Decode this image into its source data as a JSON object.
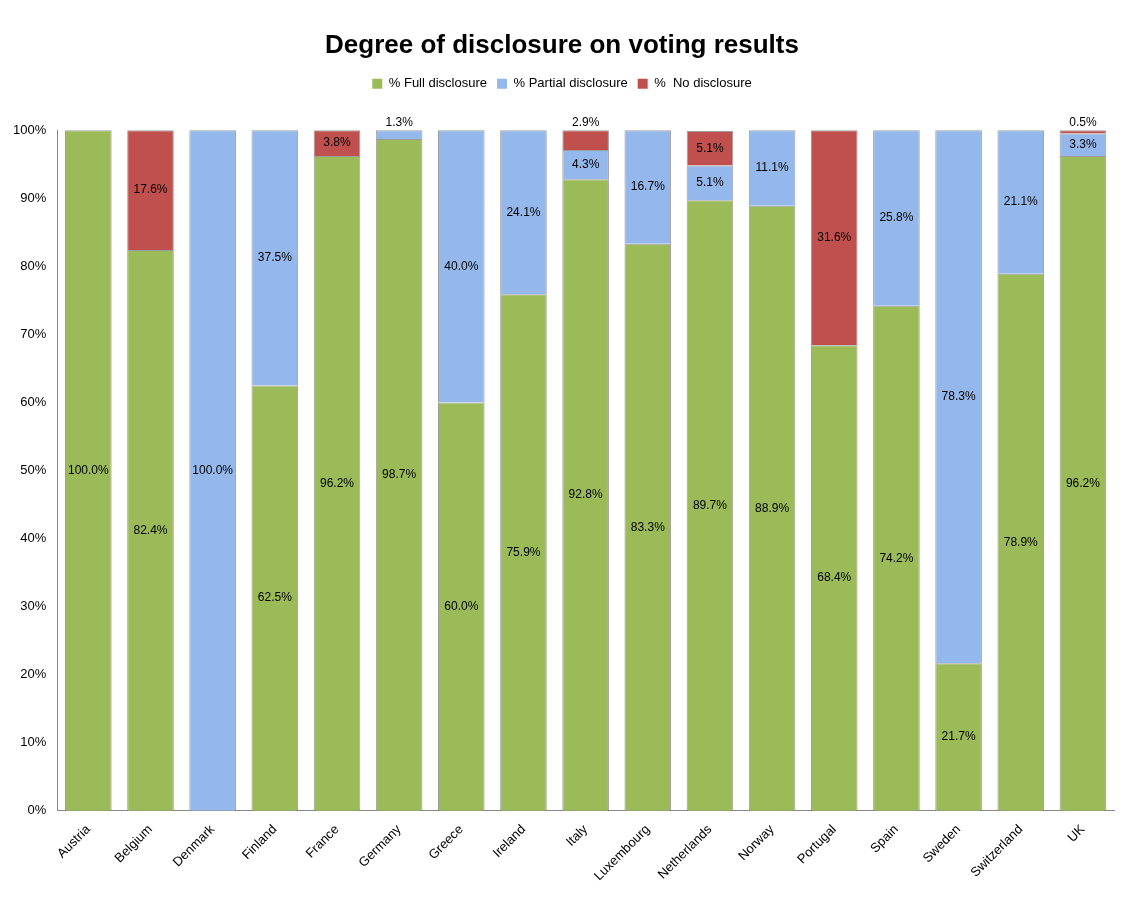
{
  "chart_data": {
    "type": "bar",
    "title": "Degree of disclosure on voting results",
    "stacked": true,
    "legend": "top",
    "grid": false,
    "categories": [
      "Austria",
      "Belgium",
      "Denmark",
      "Finland",
      "France",
      "Germany",
      "Greece",
      "Ireland",
      "Italy",
      "Luxembourg",
      "Netherlands",
      "Norway",
      "Portugal",
      "Spain",
      "Sweden",
      "Switzerland",
      "UK"
    ],
    "ylim": [
      0,
      100
    ],
    "yticks": [
      {
        "value": 0,
        "label": "0%"
      },
      {
        "value": 10,
        "label": "10%"
      },
      {
        "value": 20,
        "label": "20%"
      },
      {
        "value": 30,
        "label": "30%"
      },
      {
        "value": 40,
        "label": "40%"
      },
      {
        "value": 50,
        "label": "50%"
      },
      {
        "value": 60,
        "label": "60%"
      },
      {
        "value": 70,
        "label": "70%"
      },
      {
        "value": 80,
        "label": "80%"
      },
      {
        "value": 90,
        "label": "90%"
      },
      {
        "value": 100,
        "label": "100%"
      }
    ],
    "series": [
      {
        "name": "% Full disclosure",
        "color": "#9bbb59",
        "values": [
          100,
          82.4,
          0,
          62.5,
          96.2,
          98.7,
          60,
          75.9,
          92.8,
          83.3,
          89.7,
          88.9,
          68.4,
          74.2,
          21.7,
          78.9,
          96.2
        ],
        "value_labels": [
          "100.0%",
          "82.4%",
          null,
          "62.5%",
          "96.2%",
          "98.7%",
          "60.0%",
          "75.9%",
          "92.8%",
          "83.3%",
          "89.7%",
          "88.9%",
          "68.4%",
          "74.2%",
          "21.7%",
          "78.9%",
          "96.2%"
        ]
      },
      {
        "name": "% Partial disclosure",
        "color": "#95b8ec",
        "values": [
          0,
          0,
          100,
          37.5,
          0,
          1.3,
          40,
          24.1,
          4.3,
          16.7,
          5.1,
          11.1,
          0,
          25.8,
          78.3,
          21.1,
          3.3
        ],
        "value_labels": [
          null,
          null,
          "100.0%",
          "37.5%",
          null,
          "1.3%",
          "40.0%",
          "24.1%",
          "4.3%",
          "16.7%",
          "5.1%",
          "11.1%",
          null,
          "25.8%",
          "78.3%",
          "21.1%",
          "3.3%"
        ]
      },
      {
        "name": "%  No disclosure",
        "color": "#c0504d",
        "values": [
          0,
          17.6,
          0,
          0,
          3.8,
          0,
          0,
          0,
          2.9,
          0,
          5.1,
          0,
          31.6,
          0,
          0,
          0,
          0.5
        ],
        "value_labels": [
          null,
          "17.6%",
          null,
          null,
          "3.8%",
          null,
          null,
          null,
          "2.9%",
          null,
          "5.1%",
          null,
          "31.6%",
          null,
          null,
          null,
          "0.5%"
        ]
      }
    ]
  }
}
